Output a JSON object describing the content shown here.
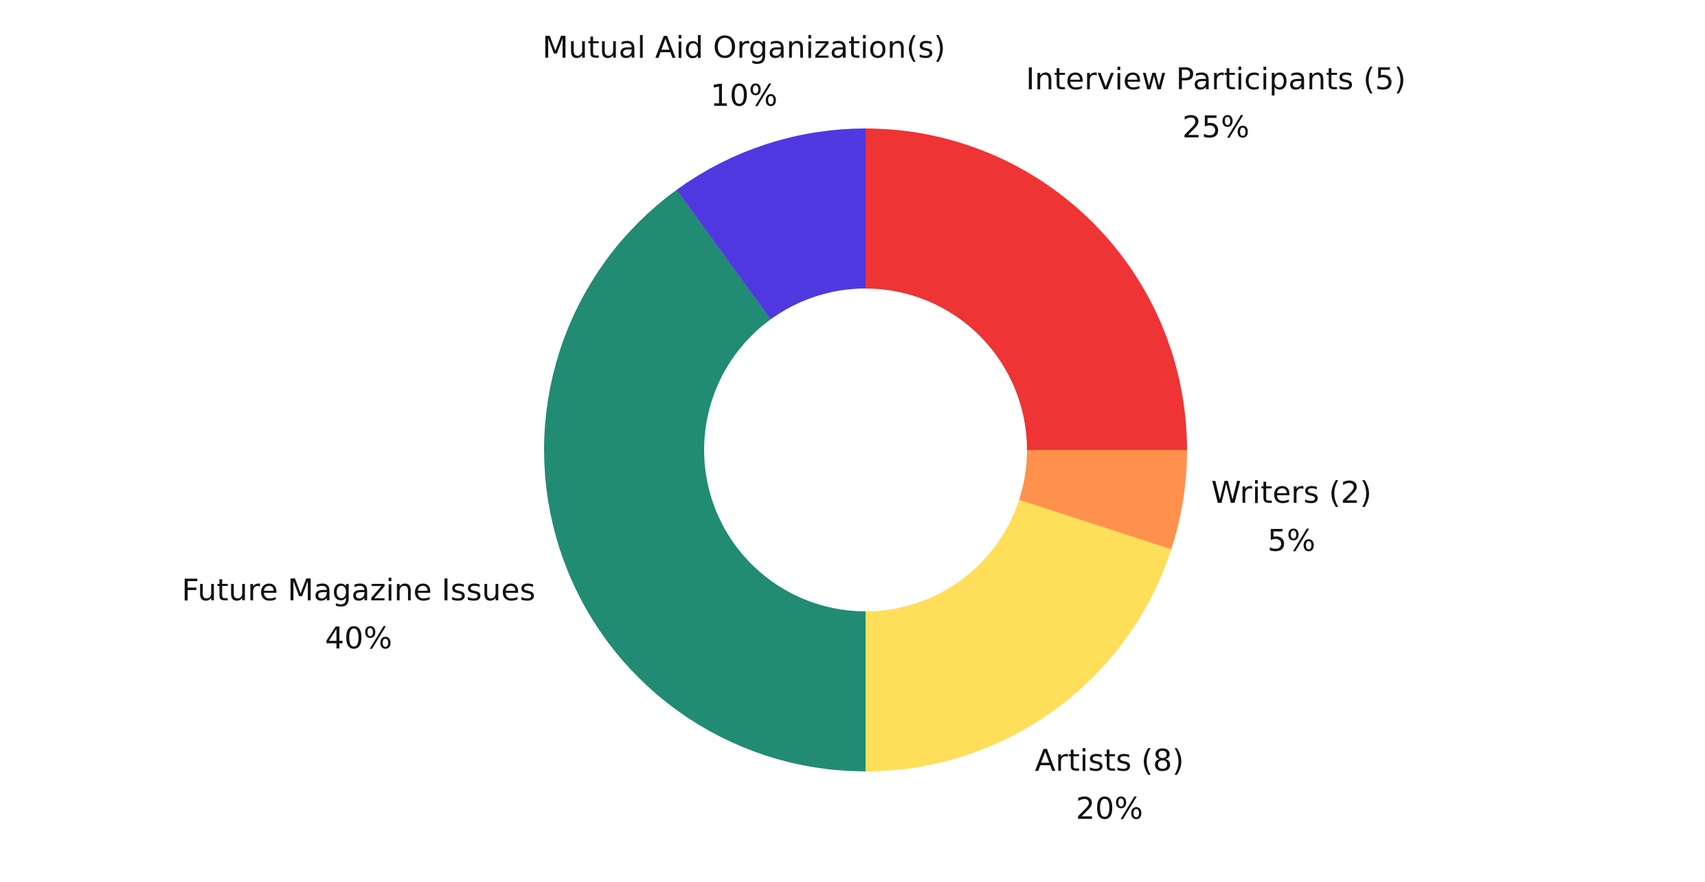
{
  "chart_data": {
    "type": "pie",
    "donut": true,
    "title": "",
    "legend": "none",
    "slices": [
      {
        "label": "Interview Participants (5)",
        "value": 25,
        "value_label": "25%",
        "color": "#EE3434"
      },
      {
        "label": "Writers (2)",
        "value": 5,
        "value_label": "5%",
        "color": "#FF914D"
      },
      {
        "label": "Artists (8)",
        "value": 20,
        "value_label": "20%",
        "color": "#FFDE59"
      },
      {
        "label": "Future Magazine Issues",
        "value": 40,
        "value_label": "40%",
        "color": "#218B74"
      },
      {
        "label": "Mutual Aid Organization(s)",
        "value": 10,
        "value_label": "10%",
        "color": "#5038E1"
      }
    ]
  }
}
